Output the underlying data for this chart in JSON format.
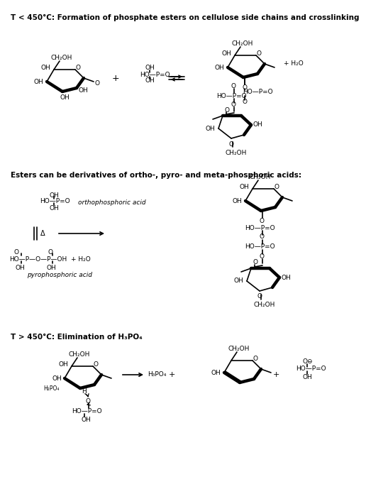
{
  "title1": "T < 450°C: Formation of phosphate esters on cellulose side chains and crosslinking",
  "title2": "Esters can be derivatives of ortho-, pyro- and meta-phosphoric acids:",
  "title3_a": "T > 450",
  "title3_b": "°C: Elimination of H₃PO₄",
  "bg": "#ffffff",
  "lc": "#000000",
  "fs": 6.5,
  "fs_title": 7.5
}
